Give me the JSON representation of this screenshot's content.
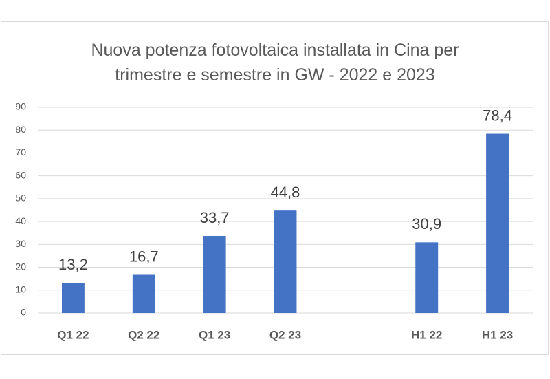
{
  "chart_data": {
    "type": "bar",
    "title": "Nuova potenza fotovoltaica installata in Cina per trimestre e semestre in GW - 2022 e 2023",
    "categories": [
      "Q1 22",
      "Q2 22",
      "Q1 23",
      "Q2 23",
      null,
      "H1 22",
      "H1 23"
    ],
    "values": [
      13.2,
      16.7,
      33.7,
      44.8,
      null,
      30.9,
      78.4
    ],
    "value_labels": [
      "13,2",
      "16,7",
      "33,7",
      "44,8",
      null,
      "30,9",
      "78,4"
    ],
    "color": "#4472c4",
    "ylim": [
      0,
      90
    ],
    "yticks": [
      0,
      10,
      20,
      30,
      40,
      50,
      60,
      70,
      80,
      90
    ],
    "grid": true
  }
}
